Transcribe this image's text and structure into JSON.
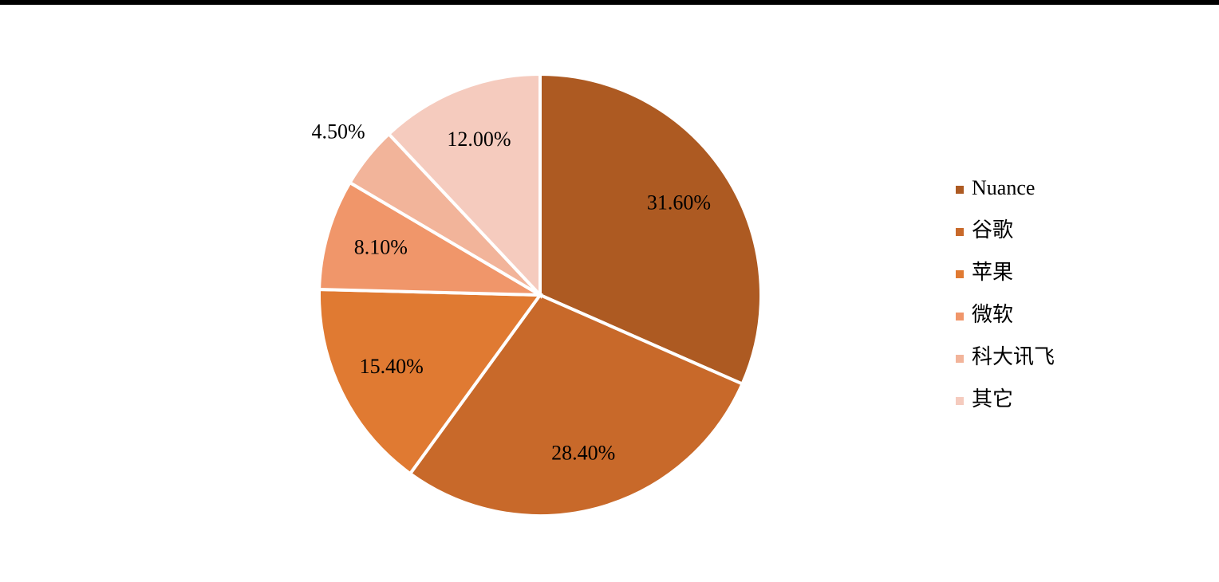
{
  "chart_data": {
    "type": "pie",
    "categories": [
      "Nuance",
      "谷歌",
      "苹果",
      "微软",
      "科大讯飞",
      "其它"
    ],
    "values": [
      31.6,
      28.4,
      15.4,
      8.1,
      4.5,
      12.0
    ],
    "value_labels": [
      "31.60%",
      "28.40%",
      "15.40%",
      "8.10%",
      "4.50%",
      "12.00%"
    ],
    "colors": [
      "#ad5a22",
      "#c8692a",
      "#e07a32",
      "#f0966a",
      "#f2b49a",
      "#f5cbbe"
    ],
    "legend": "right"
  }
}
